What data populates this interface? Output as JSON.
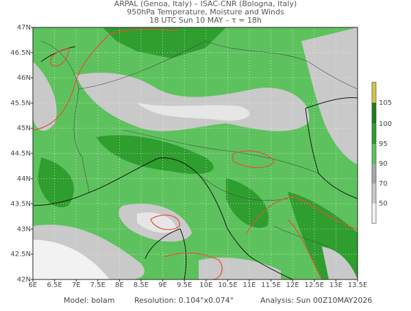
{
  "header": {
    "lines": [
      "ARPAL (Genoa, Italy)  –  ISAC-CNR (Bologna, Italy)",
      "950hPa Temperature, Moisture and Winds",
      "18 UTC Sun 10 MAY  –  τ = 18h"
    ]
  },
  "map": {
    "lat_labels": [
      "47N",
      "46.5N",
      "46N",
      "45.5N",
      "45N",
      "44.5N",
      "44N",
      "43.5N",
      "43N",
      "42.5N",
      "42N"
    ],
    "lon_labels": [
      "6E",
      "6.5E",
      "7E",
      "7.5E",
      "8E",
      "8.5E",
      "9E",
      "9.5E",
      "10E",
      "10.5E",
      "11E",
      "11.5E",
      "12E",
      "12.5E",
      "13E",
      "13.5E"
    ]
  },
  "colorbar": {
    "labels": [
      105,
      100,
      95,
      90,
      70,
      50
    ]
  },
  "footer": {
    "model": "Model: bolam",
    "resolution": "Resolution: 0.104°x0.074°",
    "analysis": "Analysis: Sun 00Z10MAY2026"
  }
}
